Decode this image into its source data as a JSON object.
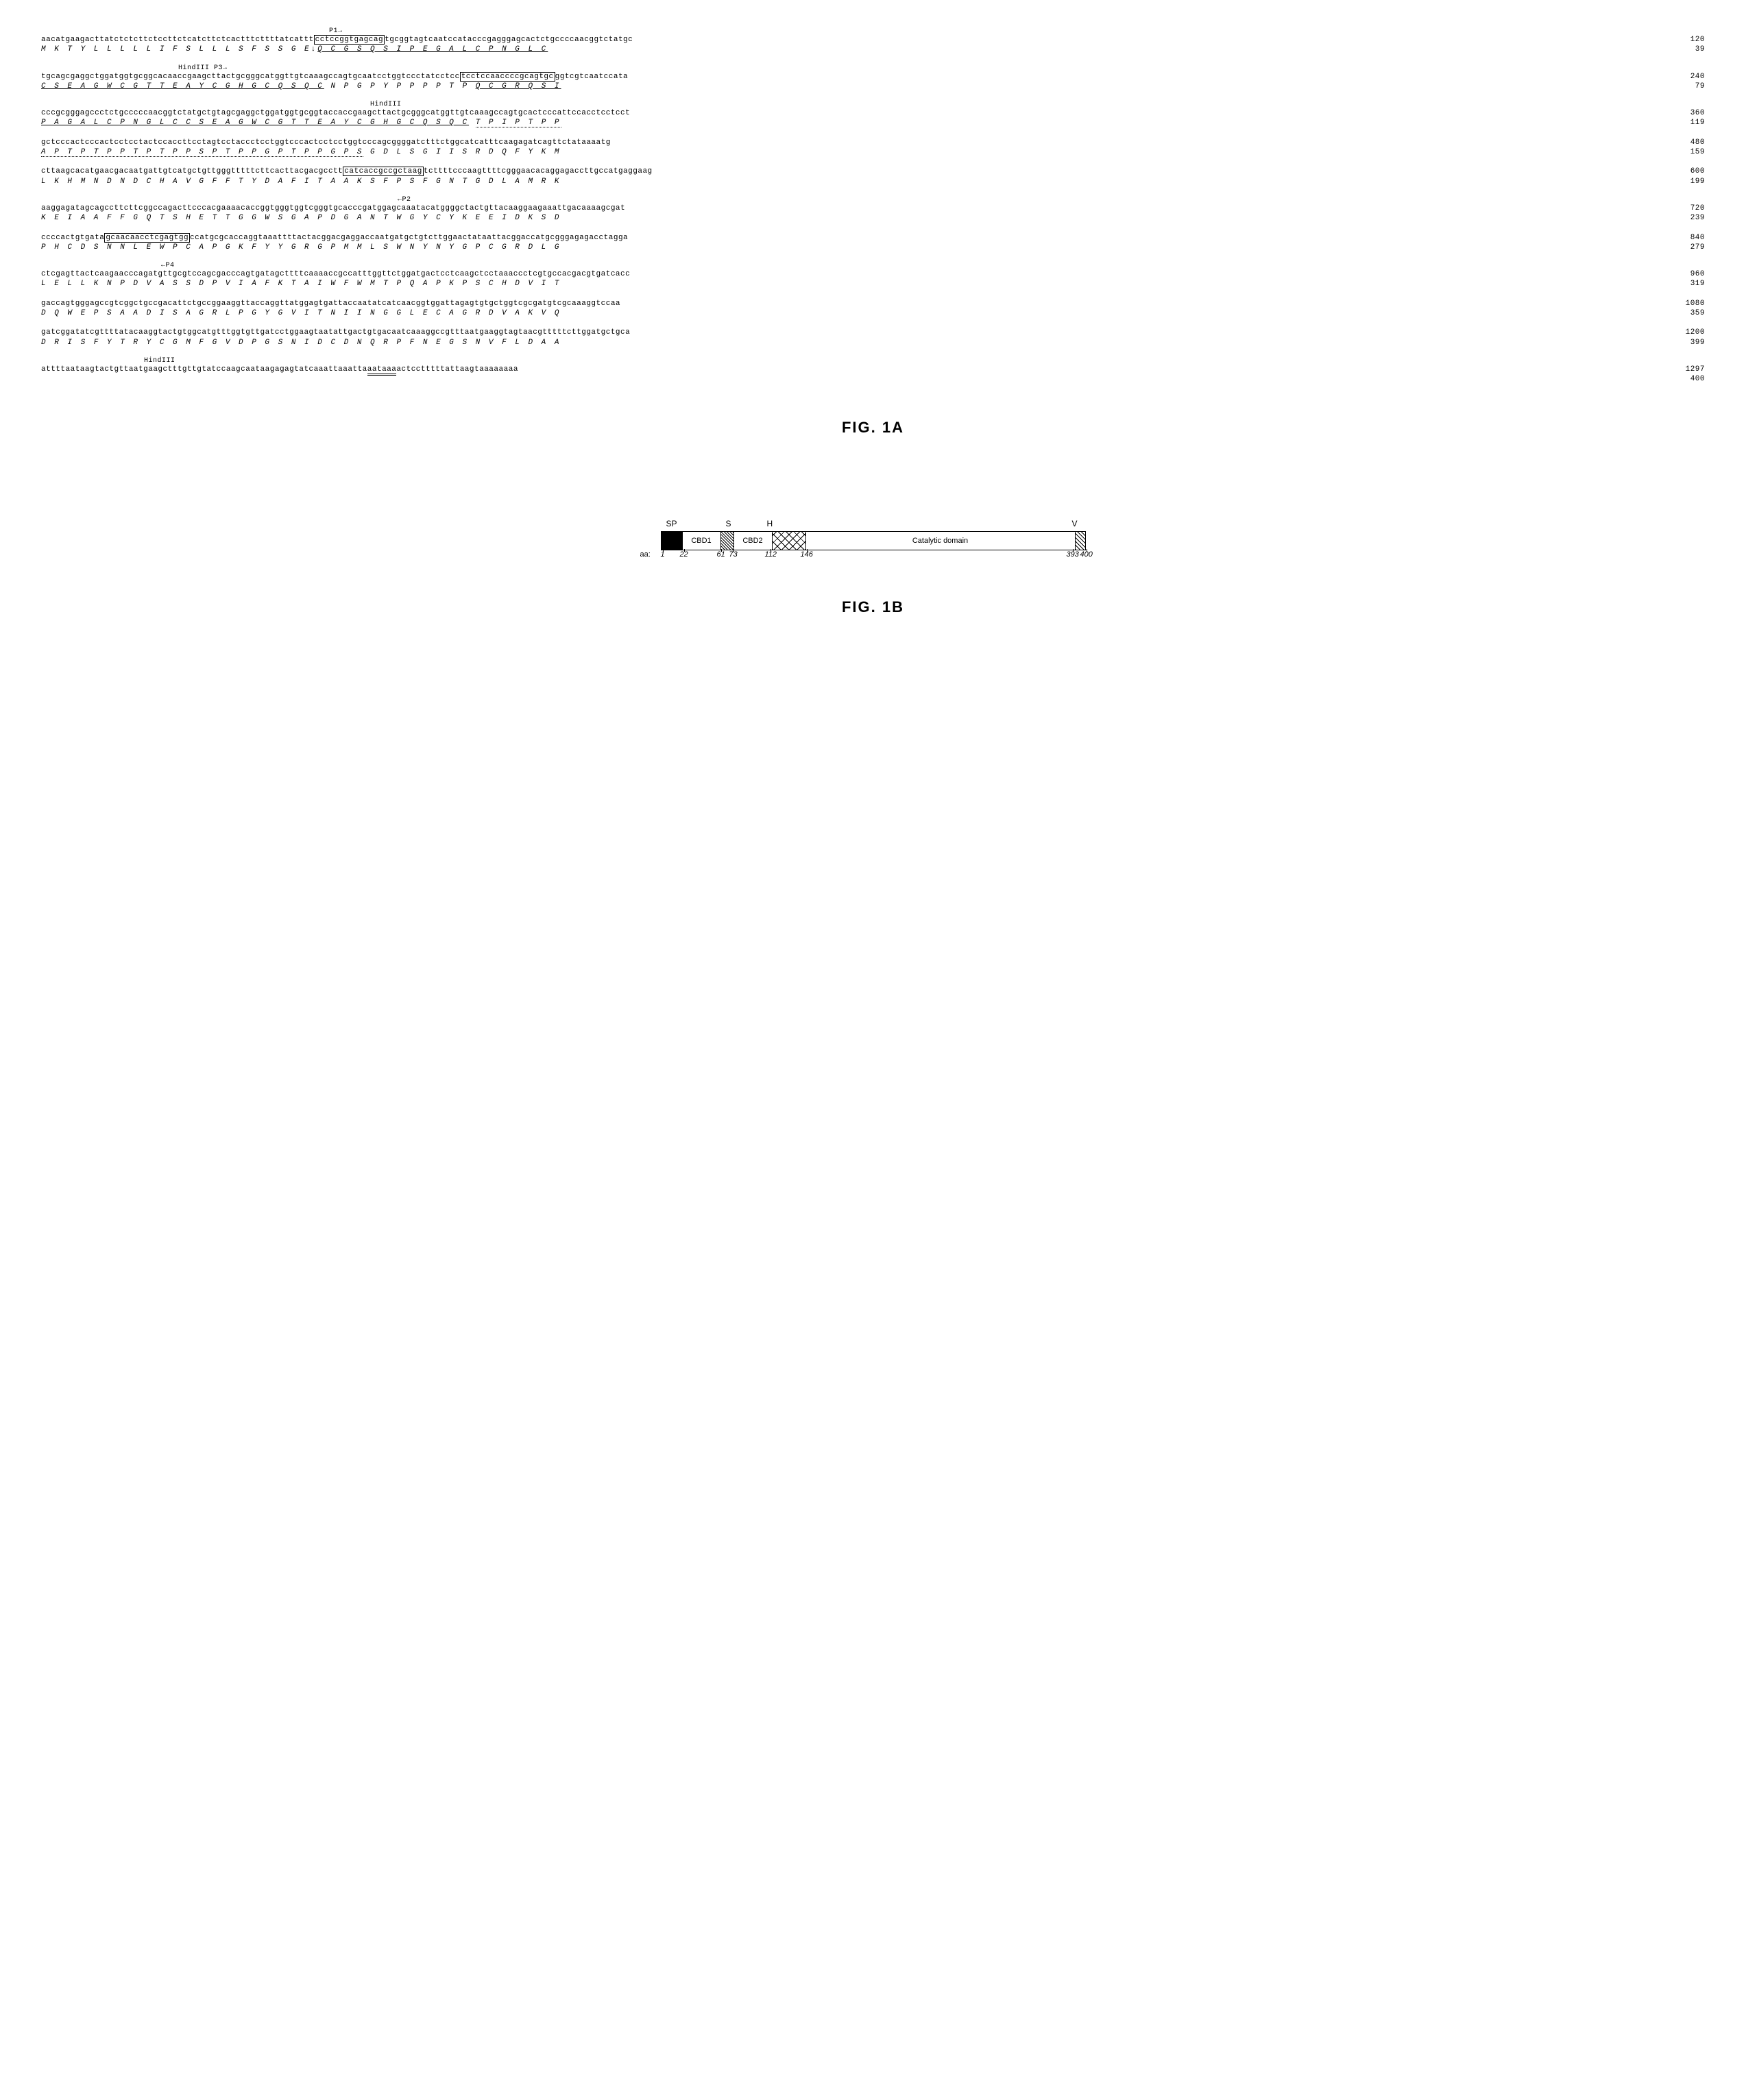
{
  "figure_a_label": "FIG. 1A",
  "figure_b_label": "FIG. 1B",
  "sequence_rows": [
    {
      "type": "anno",
      "text": "                                              P1→",
      "class": "arrow-label",
      "indent": 420
    },
    {
      "type": "nt",
      "text": "aacatgaagacttatctctcttctccttctcatcttctcactttcttttatcattt<span class='boxed'>cctccggtgagcag</span>tgcggtagtcaatccatacccgagggagcactctgccccaacggtctatgc",
      "num": "120"
    },
    {
      "type": "aa",
      "text": " M  K  T  Y  L  L  L  L  L  I  F  S  L  L  L  S  F  S  S  G  E↓<span class='underline-solid'>Q  C  G  S  Q  S  I  P  E  G  A  L  C  P  N  G  L  C</span>",
      "num": "39"
    },
    {
      "type": "anno",
      "text": "HindIII                                                    P3→",
      "indent": 200
    },
    {
      "type": "nt",
      "text": "tgcagcgaggctggatggtgcggcacaaccgaagcttactgcgggcatggttgtcaaagccagtgcaatcctggtccctatcctcc<span class='boxed'>tcctccaaccccgcagtgc</span>ggtcgtcaatccata",
      "num": "240"
    },
    {
      "type": "aa",
      "text": "<span class='underline-solid'>C  S  E  A  G  W  C  G  T  T  E  A  Y  C  G  H  G  C  Q  S  Q  C</span>  N  P  G  P  Y  P  P  P  P  T  P  <span class='underline-solid'>Q  C  G  R  Q  S  I</span>",
      "num": "79"
    },
    {
      "type": "anno",
      "text": "HindIII",
      "indent": 480
    },
    {
      "type": "nt",
      "text": "cccgcgggagccctctgcccccaacggtctatgctgtagcgaggctggatggtgcggtaccaccgaagcttactgcgggcatggttgtcaaagccagtgcactcccattccacctcctcct",
      "num": "360"
    },
    {
      "type": "aa",
      "text": "<span class='underline-solid'>P  A  G  A  L  C  P  N  G  L  C  C  S  E  A  G  W  C  G  T  T  E  A  Y  C  G  H  G  C  Q  S  Q  C</span>  <span class='underline-dotted'>T  P  I  P  T  P  P</span>",
      "num": "119"
    },
    {
      "type": "nt",
      "text": "gctcccactcccactcctcctactccaccttcctagtcctaccctcctggtcccactcctcctggtcccagcggggatctttctggcatcatttcaagagatcagttctataaaatg",
      "num": "480"
    },
    {
      "type": "aa",
      "text": "<span class='underline-dotted'>A  P  T  P  T  P  P  T  P  T  P  P  S  P  T  P  P  G  P  T  P  P  G  P  S</span>  G  D  L  S  G  I  I  S  R  D  Q  F  Y  K  M",
      "num": "159"
    },
    {
      "type": "nt",
      "text": "cttaagcacatgaacgacaatgattgtcatgctgttgggtttttcttcacttacgacgcctt<span class='boxed'>catcaccgccgctaag</span>tcttttcccaagttttcgggaacacaggagaccttgccatgaggaag",
      "num": "600"
    },
    {
      "type": "aa",
      "text": " L  K  H  M  N  D  N  D  C  H  A  V  G  F  F  T  Y  D  A  F  I  T  A  A  K  S  F  P  S  F  G  N  T  G  D  L  A  M  R  K",
      "num": "199"
    },
    {
      "type": "anno",
      "text": "←P2",
      "indent": 520
    },
    {
      "type": "nt",
      "text": "aaggagatagcagccttcttcggccagacttcccacgaaaacaccggtgggtggtcgggtgcacccgatggagcaaatacatggggctactgttacaaggaagaaattgacaaaagcgat",
      "num": "720"
    },
    {
      "type": "aa",
      "text": " K  E  I  A  A  F  F  G  Q  T  S  H  E  T  T  G  G  W  S  G  A  P  D  G  A  N  T  W  G  Y  C  Y  K  E  E  I  D  K  S  D",
      "num": "239"
    },
    {
      "type": "nt",
      "text": "ccccactgtgata<span class='boxed'>gcaacaacctcgagtgg</span>ccatgcgcaccaggtaaattttactacggacgaggaccaatgatgctgtcttggaactataattacggaccatgcgggagagacctagga",
      "num": "840"
    },
    {
      "type": "aa",
      "text": " P  H  C  D  S  N  N  L  E  W  P  C  A  P  G  K  F  Y  Y  G  R  G  P  M  M  L  S  W  N  Y  N  Y  G  P  C  G  R  D  L  G",
      "num": "279"
    },
    {
      "type": "anno",
      "text": "←P4",
      "indent": 175
    },
    {
      "type": "nt",
      "text": "ctcgagttactcaagaacccagatgttgcgtccagcgacccagtgatagcttttcaaaaccgccatttggttctggatgactcctcaagctcctaaaccctcgtgccacgacgtgatcacc",
      "num": "960"
    },
    {
      "type": "aa",
      "text": " L  E  L  L  K  N  P  D  V  A  S  S  D  P  V  I  A  F  K  T  A  I  W  F  W  M  T  P  Q  A  P  K  P  S  C  H  D  V  I  T",
      "num": "319"
    },
    {
      "type": "nt",
      "text": "gaccagtgggagccgtcggctgccgacattctgccggaaggttaccaggttatggagtgattaccaatatcatcaacggtggattagagtgtgctggtcgcgatgtcgcaaaggtccaa",
      "num": "1080"
    },
    {
      "type": "aa",
      "text": " D  Q  W  E  P  S  A  A  D  I  S  A  G  R  L  P  G  Y  G  V  I  T  N  I  I  N  G  G  L  E  C  A  G  R  D  V  A  K  V  Q",
      "num": "359"
    },
    {
      "type": "nt",
      "text": "gatcggatatcgttttatacaaggtactgtggcatgtttggtgttgatcctggaagtaatattgactgtgacaatcaaaggccgtttaatgaaggtagtaacgtttttcttggatgctgca",
      "num": "1200"
    },
    {
      "type": "aa",
      "text": " D  R  I  S  F  Y  T  R  Y  C  G  M  F  G  V  D  P  G  S  N  I  D  C  D  N  Q  R  P  F  N  E  G  S  N  V  F  L  D  A  A",
      "num": "399"
    },
    {
      "type": "anno",
      "text": "HindIII",
      "indent": 150
    },
    {
      "type": "nt",
      "text": "attttaataagtactgttaatgaagctttgttgtatccaagcaataagagagtatcaaattaaatta<span style='border-bottom:3px double #000'>aataaa</span>actcctttttattaagtaaaaaaaa",
      "num": "1297"
    },
    {
      "type": "aa",
      "text": "",
      "num": "400"
    }
  ],
  "domain": {
    "top_labels": [
      {
        "text": "SP",
        "pos": 8
      },
      {
        "text": "S",
        "pos": 95
      },
      {
        "text": "H",
        "pos": 155
      },
      {
        "text": "V",
        "pos": 600
      }
    ],
    "segments": [
      {
        "class": "seg-sp",
        "label": ""
      },
      {
        "class": "seg-cbd1",
        "label": "CBD1"
      },
      {
        "class": "seg-s",
        "label": ""
      },
      {
        "class": "seg-cbd2",
        "label": "CBD2"
      },
      {
        "class": "seg-h",
        "label": ""
      },
      {
        "class": "seg-cat",
        "label": "Catalytic domain"
      },
      {
        "class": "seg-v",
        "label": ""
      }
    ],
    "ticks": [
      {
        "text": "1",
        "pos": 0
      },
      {
        "text": "22",
        "pos": 28
      },
      {
        "text": "61",
        "pos": 82
      },
      {
        "text": "73",
        "pos": 100
      },
      {
        "text": "112",
        "pos": 152
      },
      {
        "text": "146",
        "pos": 204
      },
      {
        "text": "393",
        "pos": 592
      },
      {
        "text": "400",
        "pos": 612
      }
    ],
    "aa_label": "aa:"
  }
}
